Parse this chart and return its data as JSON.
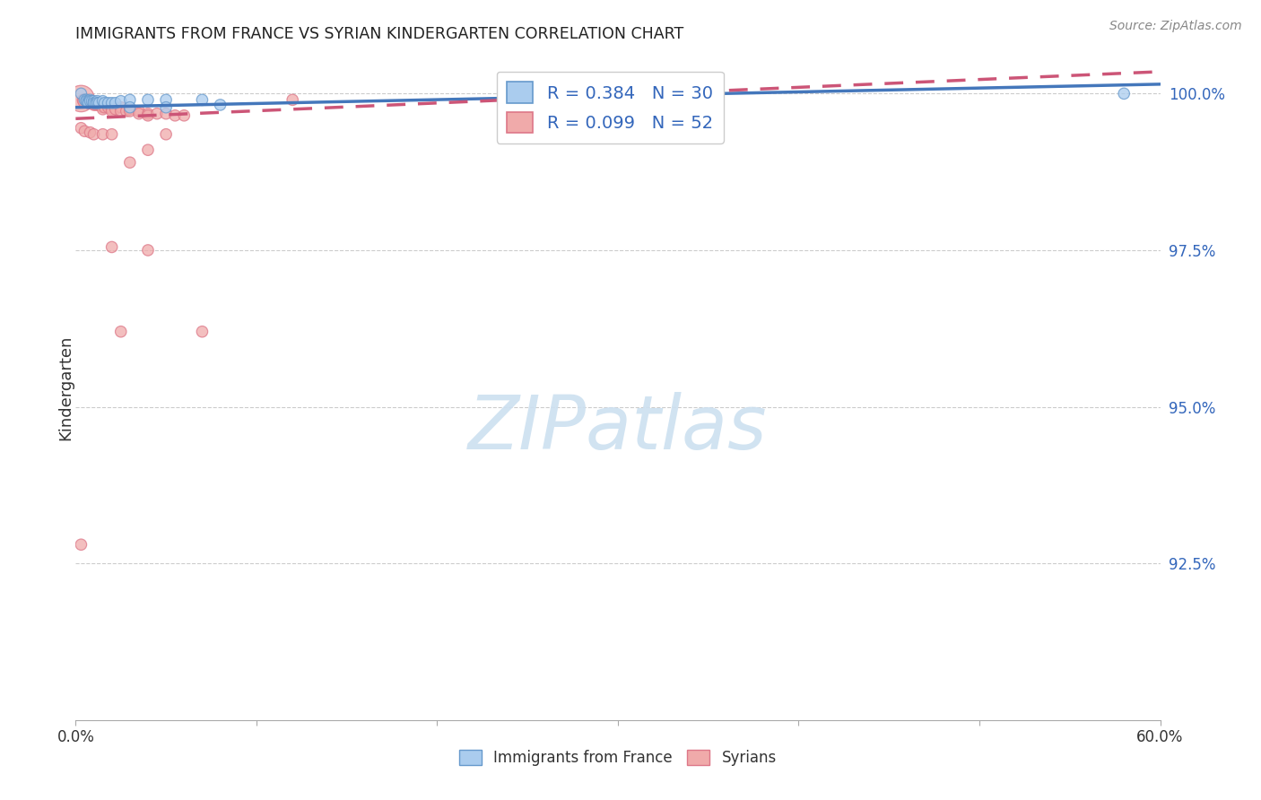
{
  "title": "IMMIGRANTS FROM FRANCE VS SYRIAN KINDERGARTEN CORRELATION CHART",
  "source_text": "Source: ZipAtlas.com",
  "ylabel": "Kindergarten",
  "legend_bottom": [
    "Immigrants from France",
    "Syrians"
  ],
  "r_france": "0.384",
  "n_france": "30",
  "r_syria": "0.099",
  "n_syria": "52",
  "blue_fill": "#aaccee",
  "blue_edge": "#6699cc",
  "blue_line": "#4477bb",
  "pink_fill": "#f0aaaa",
  "pink_edge": "#dd7788",
  "pink_line": "#cc5577",
  "grid_color": "#cccccc",
  "watermark_color": "#cce0f0",
  "xlim": [
    0.0,
    0.6
  ],
  "ylim": [
    0.9,
    1.006
  ],
  "yticks": [
    0.925,
    0.95,
    0.975,
    1.0
  ],
  "ytick_labels": [
    "92.5%",
    "95.0%",
    "97.5%",
    "100.0%"
  ],
  "blue_line_x0": 0.0,
  "blue_line_y0": 0.9978,
  "blue_line_x1": 0.6,
  "blue_line_y1": 1.0015,
  "pink_line_x0": 0.0,
  "pink_line_y0": 0.996,
  "pink_line_x1": 0.6,
  "pink_line_y1": 1.0035,
  "france_data": [
    [
      0.003,
      1.0
    ],
    [
      0.005,
      0.999
    ],
    [
      0.006,
      0.999
    ],
    [
      0.006,
      0.9988
    ],
    [
      0.007,
      0.9988
    ],
    [
      0.007,
      0.9985
    ],
    [
      0.008,
      0.999
    ],
    [
      0.008,
      0.9988
    ],
    [
      0.009,
      0.9988
    ],
    [
      0.01,
      0.9988
    ],
    [
      0.01,
      0.9985
    ],
    [
      0.011,
      0.9985
    ],
    [
      0.012,
      0.9988
    ],
    [
      0.012,
      0.9985
    ],
    [
      0.013,
      0.9985
    ],
    [
      0.015,
      0.9988
    ],
    [
      0.016,
      0.9985
    ],
    [
      0.018,
      0.9985
    ],
    [
      0.02,
      0.9985
    ],
    [
      0.022,
      0.9985
    ],
    [
      0.025,
      0.9988
    ],
    [
      0.03,
      0.999
    ],
    [
      0.04,
      0.999
    ],
    [
      0.05,
      0.999
    ],
    [
      0.07,
      0.999
    ],
    [
      0.08,
      0.9982
    ],
    [
      0.32,
      0.9978
    ],
    [
      0.58,
      1.0
    ],
    [
      0.03,
      0.9978
    ],
    [
      0.05,
      0.9978
    ]
  ],
  "france_sizes": [
    80,
    80,
    80,
    80,
    80,
    80,
    80,
    80,
    80,
    80,
    80,
    80,
    80,
    80,
    80,
    80,
    80,
    80,
    80,
    80,
    80,
    80,
    80,
    80,
    80,
    80,
    80,
    80,
    80,
    80
  ],
  "syria_data": [
    [
      0.003,
      0.9992
    ],
    [
      0.004,
      0.999
    ],
    [
      0.005,
      0.9988
    ],
    [
      0.006,
      0.9988
    ],
    [
      0.007,
      0.9988
    ],
    [
      0.007,
      0.9985
    ],
    [
      0.008,
      0.9985
    ],
    [
      0.008,
      0.9985
    ],
    [
      0.009,
      0.9985
    ],
    [
      0.01,
      0.9985
    ],
    [
      0.01,
      0.9982
    ],
    [
      0.011,
      0.9982
    ],
    [
      0.012,
      0.9985
    ],
    [
      0.012,
      0.9982
    ],
    [
      0.013,
      0.9982
    ],
    [
      0.014,
      0.9982
    ],
    [
      0.015,
      0.9978
    ],
    [
      0.015,
      0.9975
    ],
    [
      0.016,
      0.9978
    ],
    [
      0.018,
      0.9978
    ],
    [
      0.02,
      0.9975
    ],
    [
      0.02,
      0.9972
    ],
    [
      0.022,
      0.9975
    ],
    [
      0.025,
      0.9978
    ],
    [
      0.025,
      0.9972
    ],
    [
      0.028,
      0.9972
    ],
    [
      0.03,
      0.9975
    ],
    [
      0.03,
      0.9972
    ],
    [
      0.035,
      0.9972
    ],
    [
      0.035,
      0.9968
    ],
    [
      0.04,
      0.9968
    ],
    [
      0.04,
      0.9965
    ],
    [
      0.045,
      0.9968
    ],
    [
      0.05,
      0.9968
    ],
    [
      0.055,
      0.9965
    ],
    [
      0.06,
      0.9965
    ],
    [
      0.003,
      0.9945
    ],
    [
      0.005,
      0.994
    ],
    [
      0.008,
      0.9938
    ],
    [
      0.01,
      0.9935
    ],
    [
      0.015,
      0.9935
    ],
    [
      0.02,
      0.9935
    ],
    [
      0.025,
      0.962
    ],
    [
      0.35,
      0.9985
    ],
    [
      0.03,
      0.989
    ],
    [
      0.04,
      0.991
    ],
    [
      0.05,
      0.9935
    ],
    [
      0.12,
      0.999
    ],
    [
      0.003,
      0.928
    ],
    [
      0.04,
      0.975
    ],
    [
      0.07,
      0.962
    ],
    [
      0.02,
      0.9755
    ]
  ],
  "syria_sizes": [
    450,
    80,
    120,
    80,
    80,
    80,
    80,
    80,
    80,
    80,
    80,
    80,
    80,
    80,
    80,
    80,
    80,
    80,
    80,
    80,
    80,
    80,
    80,
    80,
    80,
    80,
    80,
    80,
    80,
    80,
    80,
    80,
    80,
    80,
    80,
    80,
    80,
    80,
    80,
    80,
    80,
    80,
    80,
    80,
    80,
    80,
    80,
    80,
    80,
    80,
    80,
    80
  ]
}
